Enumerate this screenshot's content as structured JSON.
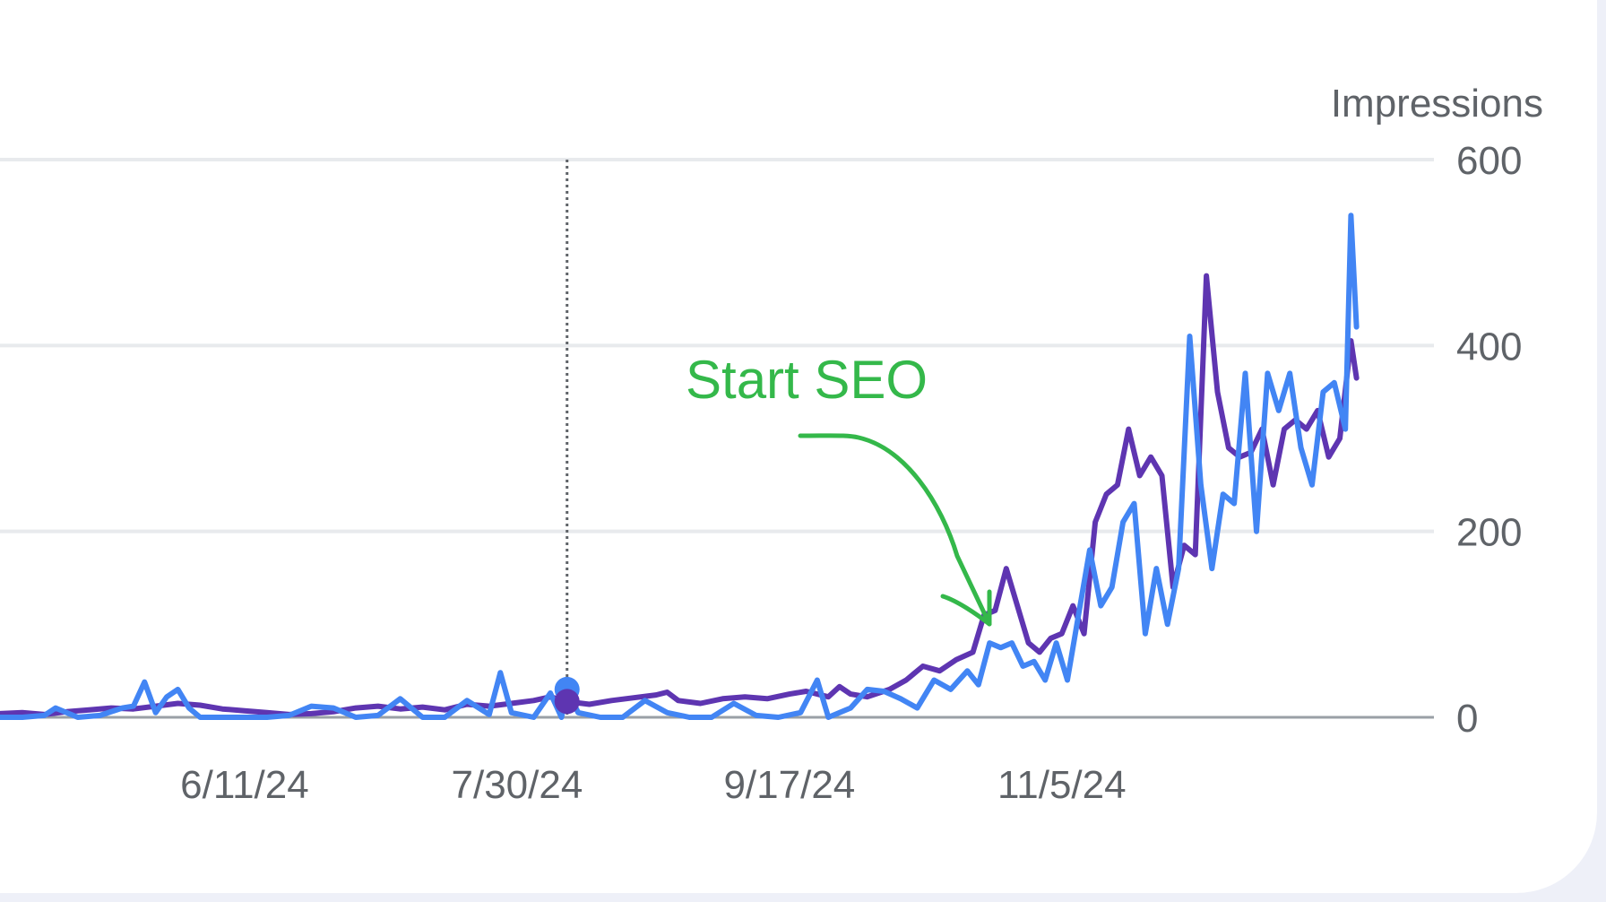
{
  "chart_data": {
    "type": "line",
    "xlabel": "",
    "ylabel": "Impressions",
    "ylim": [
      0,
      600
    ],
    "yticks": [
      "0",
      "200",
      "400",
      "600"
    ],
    "xticks": [
      {
        "label": "6/11/24",
        "date": "2024-06-11"
      },
      {
        "label": "7/30/24",
        "date": "2024-07-30"
      },
      {
        "label": "9/17/24",
        "date": "2024-09-17"
      },
      {
        "label": "11/5/24",
        "date": "2024-11-05"
      }
    ],
    "x_range": [
      "2024-04-28",
      "2024-12-25"
    ],
    "grid": true,
    "hover_date": "2024-08-08",
    "annotation": {
      "text": "Start SEO",
      "points_to_date": "2024-10-01",
      "points_to_value": 100
    },
    "series": [
      {
        "color": "#5e35b1",
        "points": [
          [
            "2024-04-28",
            4
          ],
          [
            "2024-05-02",
            5
          ],
          [
            "2024-05-06",
            3
          ],
          [
            "2024-05-10",
            6
          ],
          [
            "2024-05-14",
            8
          ],
          [
            "2024-05-18",
            10
          ],
          [
            "2024-05-22",
            9
          ],
          [
            "2024-05-26",
            12
          ],
          [
            "2024-05-30",
            15
          ],
          [
            "2024-06-03",
            13
          ],
          [
            "2024-06-07",
            9
          ],
          [
            "2024-06-11",
            7
          ],
          [
            "2024-06-15",
            5
          ],
          [
            "2024-06-19",
            3
          ],
          [
            "2024-06-23",
            4
          ],
          [
            "2024-06-27",
            6
          ],
          [
            "2024-07-01",
            10
          ],
          [
            "2024-07-05",
            12
          ],
          [
            "2024-07-09",
            9
          ],
          [
            "2024-07-13",
            11
          ],
          [
            "2024-07-17",
            8
          ],
          [
            "2024-07-21",
            14
          ],
          [
            "2024-07-25",
            12
          ],
          [
            "2024-07-29",
            15
          ],
          [
            "2024-08-02",
            18
          ],
          [
            "2024-08-05",
            22
          ],
          [
            "2024-08-08",
            17
          ],
          [
            "2024-08-12",
            14
          ],
          [
            "2024-08-16",
            18
          ],
          [
            "2024-08-20",
            21
          ],
          [
            "2024-08-24",
            24
          ],
          [
            "2024-08-26",
            27
          ],
          [
            "2024-08-28",
            18
          ],
          [
            "2024-09-01",
            15
          ],
          [
            "2024-09-05",
            20
          ],
          [
            "2024-09-09",
            22
          ],
          [
            "2024-09-13",
            20
          ],
          [
            "2024-09-17",
            25
          ],
          [
            "2024-09-20",
            28
          ],
          [
            "2024-09-24",
            22
          ],
          [
            "2024-09-26",
            33
          ],
          [
            "2024-09-28",
            25
          ],
          [
            "2024-10-01",
            22
          ],
          [
            "2024-10-05",
            30
          ],
          [
            "2024-10-08",
            40
          ],
          [
            "2024-10-11",
            55
          ],
          [
            "2024-10-14",
            50
          ],
          [
            "2024-10-17",
            62
          ],
          [
            "2024-10-20",
            70
          ],
          [
            "2024-10-22",
            110
          ],
          [
            "2024-10-24",
            115
          ],
          [
            "2024-10-26",
            160
          ],
          [
            "2024-10-28",
            120
          ],
          [
            "2024-10-30",
            80
          ],
          [
            "2024-11-01",
            70
          ],
          [
            "2024-11-03",
            85
          ],
          [
            "2024-11-05",
            90
          ],
          [
            "2024-11-07",
            120
          ],
          [
            "2024-11-09",
            90
          ],
          [
            "2024-11-11",
            210
          ],
          [
            "2024-11-13",
            240
          ],
          [
            "2024-11-15",
            250
          ],
          [
            "2024-11-17",
            310
          ],
          [
            "2024-11-19",
            260
          ],
          [
            "2024-11-21",
            280
          ],
          [
            "2024-11-23",
            260
          ],
          [
            "2024-11-25",
            140
          ],
          [
            "2024-11-27",
            185
          ],
          [
            "2024-11-29",
            175
          ],
          [
            "2024-12-01",
            475
          ],
          [
            "2024-12-03",
            350
          ],
          [
            "2024-12-05",
            290
          ],
          [
            "2024-12-07",
            280
          ],
          [
            "2024-12-09",
            285
          ],
          [
            "2024-12-11",
            310
          ],
          [
            "2024-12-13",
            250
          ],
          [
            "2024-12-15",
            310
          ],
          [
            "2024-12-17",
            320
          ],
          [
            "2024-12-19",
            310
          ],
          [
            "2024-12-21",
            330
          ],
          [
            "2024-12-23",
            280
          ],
          [
            "2024-12-25",
            300
          ],
          [
            "2024-12-27",
            405
          ],
          [
            "2024-12-28",
            365
          ]
        ]
      },
      {
        "color": "#4285f4",
        "points": [
          [
            "2024-04-28",
            0
          ],
          [
            "2024-05-02",
            0
          ],
          [
            "2024-05-06",
            2
          ],
          [
            "2024-05-08",
            10
          ],
          [
            "2024-05-12",
            0
          ],
          [
            "2024-05-16",
            2
          ],
          [
            "2024-05-20",
            10
          ],
          [
            "2024-05-22",
            12
          ],
          [
            "2024-05-24",
            38
          ],
          [
            "2024-05-26",
            5
          ],
          [
            "2024-05-28",
            22
          ],
          [
            "2024-05-30",
            30
          ],
          [
            "2024-06-01",
            10
          ],
          [
            "2024-06-03",
            0
          ],
          [
            "2024-06-07",
            0
          ],
          [
            "2024-06-11",
            0
          ],
          [
            "2024-06-15",
            0
          ],
          [
            "2024-06-19",
            2
          ],
          [
            "2024-06-23",
            12
          ],
          [
            "2024-06-27",
            10
          ],
          [
            "2024-07-01",
            0
          ],
          [
            "2024-07-05",
            2
          ],
          [
            "2024-07-09",
            20
          ],
          [
            "2024-07-13",
            0
          ],
          [
            "2024-07-17",
            0
          ],
          [
            "2024-07-21",
            18
          ],
          [
            "2024-07-25",
            3
          ],
          [
            "2024-07-27",
            48
          ],
          [
            "2024-07-29",
            5
          ],
          [
            "2024-08-02",
            0
          ],
          [
            "2024-08-05",
            26
          ],
          [
            "2024-08-07",
            0
          ],
          [
            "2024-08-08",
            30
          ],
          [
            "2024-08-10",
            5
          ],
          [
            "2024-08-14",
            0
          ],
          [
            "2024-08-18",
            0
          ],
          [
            "2024-08-22",
            18
          ],
          [
            "2024-08-26",
            5
          ],
          [
            "2024-08-30",
            0
          ],
          [
            "2024-09-03",
            0
          ],
          [
            "2024-09-07",
            15
          ],
          [
            "2024-09-11",
            2
          ],
          [
            "2024-09-15",
            0
          ],
          [
            "2024-09-19",
            5
          ],
          [
            "2024-09-22",
            40
          ],
          [
            "2024-09-24",
            0
          ],
          [
            "2024-09-28",
            10
          ],
          [
            "2024-10-01",
            30
          ],
          [
            "2024-10-04",
            28
          ],
          [
            "2024-10-07",
            20
          ],
          [
            "2024-10-10",
            10
          ],
          [
            "2024-10-13",
            40
          ],
          [
            "2024-10-16",
            30
          ],
          [
            "2024-10-19",
            50
          ],
          [
            "2024-10-21",
            35
          ],
          [
            "2024-10-23",
            80
          ],
          [
            "2024-10-25",
            75
          ],
          [
            "2024-10-27",
            80
          ],
          [
            "2024-10-29",
            55
          ],
          [
            "2024-10-31",
            60
          ],
          [
            "2024-11-02",
            40
          ],
          [
            "2024-11-04",
            80
          ],
          [
            "2024-11-06",
            40
          ],
          [
            "2024-11-08",
            110
          ],
          [
            "2024-11-10",
            180
          ],
          [
            "2024-11-12",
            120
          ],
          [
            "2024-11-14",
            140
          ],
          [
            "2024-11-16",
            210
          ],
          [
            "2024-11-18",
            230
          ],
          [
            "2024-11-20",
            90
          ],
          [
            "2024-11-22",
            160
          ],
          [
            "2024-11-24",
            100
          ],
          [
            "2024-11-26",
            160
          ],
          [
            "2024-11-28",
            410
          ],
          [
            "2024-11-30",
            250
          ],
          [
            "2024-12-02",
            160
          ],
          [
            "2024-12-04",
            240
          ],
          [
            "2024-12-06",
            230
          ],
          [
            "2024-12-08",
            370
          ],
          [
            "2024-12-10",
            200
          ],
          [
            "2024-12-12",
            370
          ],
          [
            "2024-12-14",
            330
          ],
          [
            "2024-12-16",
            370
          ],
          [
            "2024-12-18",
            290
          ],
          [
            "2024-12-20",
            250
          ],
          [
            "2024-12-22",
            350
          ],
          [
            "2024-12-24",
            360
          ],
          [
            "2024-12-26",
            310
          ],
          [
            "2024-12-27",
            540
          ],
          [
            "2024-12-28",
            420
          ]
        ]
      }
    ]
  }
}
